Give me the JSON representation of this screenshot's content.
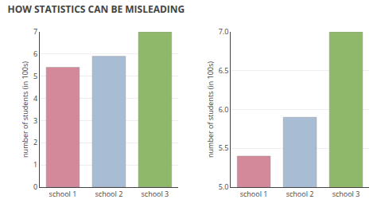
{
  "chart_data": [
    {
      "type": "bar",
      "title": "HOW STATISTICS CAN BE MISLEADING",
      "categories": [
        "school 1",
        "school 2",
        "school 3"
      ],
      "values": [
        5.4,
        5.9,
        7.0
      ],
      "colors": [
        "#d4899a",
        "#a8bcd4",
        "#90b86a"
      ],
      "ylabel": "number of students (in 100s)",
      "ylim": [
        0,
        7
      ],
      "yticks": [
        0,
        1,
        2,
        3,
        4,
        5,
        6,
        7
      ],
      "grid": true
    },
    {
      "type": "bar",
      "categories": [
        "school 1",
        "school 2",
        "school 3"
      ],
      "values": [
        5.4,
        5.9,
        7.0
      ],
      "colors": [
        "#d4899a",
        "#a8bcd4",
        "#90b86a"
      ],
      "ylabel": "number of students (in 100s)",
      "ylim": [
        5,
        7
      ],
      "yticks": [
        {
          "value": 5,
          "label": "5.0"
        },
        {
          "value": 5.5,
          "label": "5.5"
        },
        {
          "value": 6,
          "label": "6.0"
        },
        {
          "value": 6.5,
          "label": "6.5"
        },
        {
          "value": 7,
          "label": "7.0"
        }
      ],
      "grid": true
    }
  ]
}
